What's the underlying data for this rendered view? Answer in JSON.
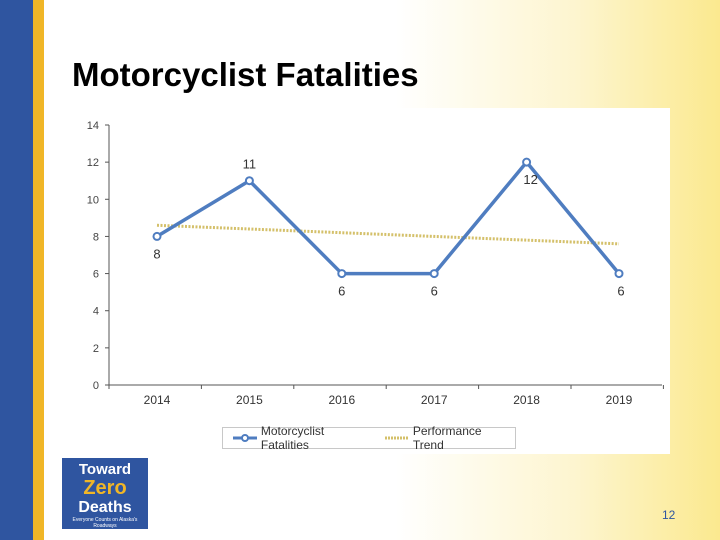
{
  "slide": {
    "title": "Motorcyclist Fatalities",
    "page_number": "12",
    "logo": {
      "line1": "Toward",
      "line2": "Zero",
      "line3": "Deaths",
      "tagline": "Everyone Counts on Alaska's Roadways"
    }
  },
  "colors": {
    "series_line": "#4f7dc0",
    "trend_line": "#d4c06a",
    "bar_blue": "#2f55a0",
    "bar_gold": "#f0b627"
  },
  "chart_data": {
    "type": "line",
    "categories": [
      "2014",
      "2015",
      "2016",
      "2017",
      "2018",
      "2019"
    ],
    "ylim": [
      0,
      14
    ],
    "yticks": [
      "0",
      "2",
      "4",
      "6",
      "8",
      "10",
      "12",
      "14"
    ],
    "series": [
      {
        "name": "Motorcyclist Fatalities",
        "values": [
          8,
          11,
          6,
          6,
          12,
          6
        ],
        "labels": [
          "8",
          "11",
          "6",
          "6",
          "12",
          "6"
        ]
      },
      {
        "name": "Performance Trend",
        "values": [
          8.6,
          8.4,
          8.2,
          8.0,
          7.8,
          7.6
        ]
      }
    ],
    "legend_position": "bottom",
    "grid": false,
    "title": "",
    "xlabel": "",
    "ylabel": ""
  }
}
